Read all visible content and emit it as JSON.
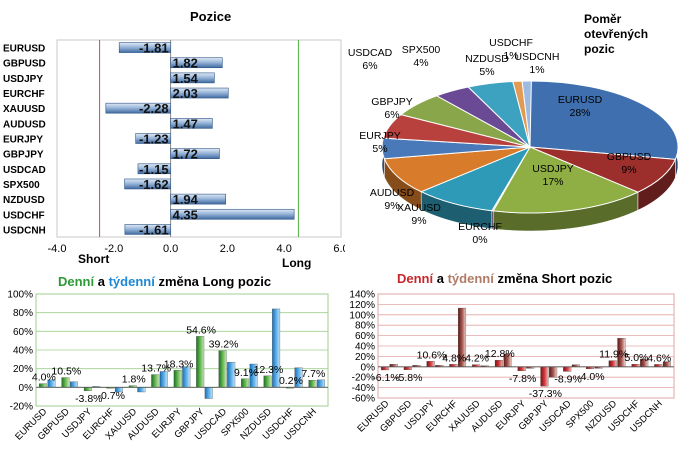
{
  "positions": {
    "title": "Pozice",
    "short_label": "Short",
    "long_label": "Long",
    "xlim": [
      -4.0,
      6.0
    ],
    "x_ticks": [
      "-4.0",
      "-2.0",
      "0.0",
      "2.0",
      "4.0",
      "6.0"
    ]
  },
  "ratio": {
    "title_lines": [
      "Poměr",
      "otevřených",
      "pozic"
    ]
  },
  "long_changes": {
    "title_parts": [
      "Denní",
      " a ",
      "týdenní",
      " změna Long pozic"
    ],
    "colors": {
      "daily": "#2e9a35",
      "weekly": "#1e88d6"
    },
    "y_ticks": [
      "100%",
      "80%",
      "60%",
      "40%",
      "20%",
      "0%",
      "-20%"
    ]
  },
  "short_changes": {
    "title_parts": [
      "Denní",
      " a ",
      "týdenní",
      " změna Short pozic"
    ],
    "colors": {
      "daily": "#c8282b",
      "weekly": "#b07b66"
    },
    "y_ticks": [
      "140%",
      "120%",
      "100%",
      "80%",
      "60%",
      "40%",
      "20%",
      "0%",
      "-20%",
      "-40%",
      "-60%"
    ]
  },
  "chart_data": [
    {
      "type": "bar",
      "orientation": "horizontal",
      "title": "Pozice",
      "categories": [
        "EURUSD",
        "GBPUSD",
        "USDJPY",
        "EURCHF",
        "XAUUSD",
        "AUDUSD",
        "EURJPY",
        "GBPJPY",
        "USDCAD",
        "SPX500",
        "NZDUSD",
        "USDCHF",
        "USDCNH"
      ],
      "values": [
        -1.81,
        1.82,
        1.54,
        2.03,
        -2.28,
        1.47,
        -1.23,
        1.72,
        -1.15,
        -1.62,
        1.94,
        4.35,
        -1.61
      ],
      "value_labels": [
        "-1.81",
        "1.82",
        "1.54",
        "2.03",
        "-2.28",
        "1.47",
        "-1.23",
        "1.72",
        "-1.15",
        "-1.62",
        "1.94",
        "4.35",
        "-1.61"
      ],
      "xlim": [
        -4.0,
        6.0
      ]
    },
    {
      "type": "pie",
      "title": "Poměr otevřených pozic",
      "labels": [
        "EURUSD",
        "GBPUSD",
        "USDJPY",
        "EURCHF",
        "XAUUSD",
        "AUDUSD",
        "EURJPY",
        "GBPJPY",
        "USDCAD",
        "SPX500",
        "NZDUSD",
        "USDCHF",
        "USDCNH"
      ],
      "values": [
        28,
        9,
        17,
        0,
        9,
        9,
        5,
        6,
        6,
        4,
        5,
        1,
        1
      ],
      "value_labels": [
        "28%",
        "9%",
        "17%",
        "0%",
        "9%",
        "9%",
        "5%",
        "6%",
        "6%",
        "4%",
        "5%",
        "1%",
        "1%"
      ],
      "colors": [
        "#3f6fae",
        "#9c2f2c",
        "#8fae44",
        "#5b3d86",
        "#2f9ab7",
        "#d87b2a",
        "#4a79ba",
        "#b8413e",
        "#8aa64a",
        "#6a4a94",
        "#3da2c0",
        "#e29a55",
        "#9dbbe0"
      ]
    },
    {
      "type": "bar",
      "title": "Denní a týdenní změna Long pozic",
      "categories": [
        "EURUSD",
        "GBPUSD",
        "USDJPY",
        "EURCHF",
        "XAUUSD",
        "AUDUSD",
        "EURJPY",
        "GBPJPY",
        "USDCAD",
        "SPX500",
        "NZDUSD",
        "USDCHF",
        "USDCNH"
      ],
      "series": [
        {
          "name": "Denní",
          "values": [
            4.0,
            10.5,
            -3.8,
            -0.7,
            1.8,
            13.7,
            18.3,
            54.6,
            39.2,
            9.1,
            12.3,
            0.2,
            7.7
          ]
        },
        {
          "name": "týdenní",
          "values": [
            8,
            6,
            1,
            -5,
            -5,
            17,
            22,
            -12,
            27,
            25,
            84,
            21,
            8
          ]
        }
      ],
      "daily_labels": [
        "4.0%",
        "10.5%",
        "-3.8%",
        "-0.7%",
        "1.8%",
        "13.7%",
        "18.3%",
        "54.6%",
        "39.2%",
        "9.1%",
        "12.3%",
        "0.2%",
        "7.7%"
      ],
      "ylim": [
        -20,
        100
      ]
    },
    {
      "type": "bar",
      "title": "Denní a týdenní změna Short pozic",
      "categories": [
        "EURUSD",
        "GBPUSD",
        "USDJPY",
        "EURCHF",
        "XAUUSD",
        "AUDUSD",
        "EURJPY",
        "GBPJPY",
        "USDCAD",
        "SPX500",
        "NZDUSD",
        "USDCHF",
        "USDCNH"
      ],
      "series": [
        {
          "name": "Denní",
          "values": [
            -6.1,
            -5.8,
            10.6,
            4.8,
            4.2,
            12.8,
            -7.8,
            -37.3,
            -8.9,
            -4.0,
            11.9,
            5.0,
            4.6
          ]
        },
        {
          "name": "týdenní",
          "values": [
            5,
            3,
            3,
            113,
            2,
            25,
            -3,
            -20,
            4,
            -3,
            55,
            15,
            10
          ]
        }
      ],
      "daily_labels": [
        "-6.1%",
        "-5.8%",
        "10.6%",
        "4.8%",
        "4.2%",
        "12.8%",
        "-7.8%",
        "-37.3%",
        "-8.9%",
        "-4.0%",
        "11.9%",
        "5.0%",
        "4.6%"
      ],
      "ylim": [
        -60,
        140
      ]
    }
  ]
}
